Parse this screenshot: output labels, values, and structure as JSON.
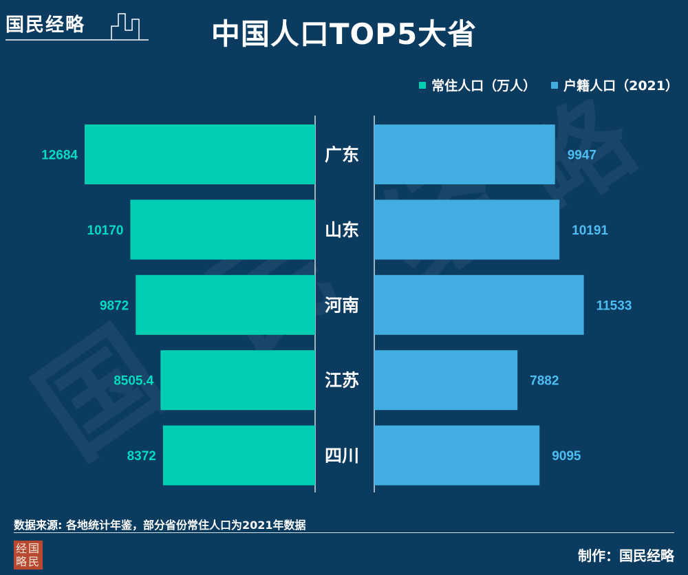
{
  "brand": {
    "name": "国民经略"
  },
  "title": "中国人口TOP5大省",
  "legend": {
    "left": {
      "label": "常住人口（万人）",
      "color": "#00cdb2"
    },
    "right": {
      "label": "户籍人口（2021）",
      "color": "#41ade0"
    }
  },
  "chart_data": {
    "type": "bar",
    "orientation": "horizontal-butterfly",
    "categories": [
      "广东",
      "山东",
      "河南",
      "江苏",
      "四川"
    ],
    "series": [
      {
        "name": "常住人口（万人）",
        "values": [
          "12684",
          "10170",
          "9872",
          "8505.4",
          "8372"
        ],
        "color": "#00cdb2",
        "label_color": "#00dcc0",
        "side": "left"
      },
      {
        "name": "户籍人口（2021）",
        "values": [
          "9947",
          "10191",
          "11533",
          "7882",
          "9095"
        ],
        "color": "#41ade0",
        "label_color": "#4dbdf2",
        "side": "right"
      }
    ]
  },
  "footer": {
    "source": "数据来源: 各地统计年鉴，部分省份常住人口为2021年数据",
    "maker": "制作：国民经略",
    "stamp_chars": [
      "经",
      "国",
      "略",
      "民"
    ]
  }
}
